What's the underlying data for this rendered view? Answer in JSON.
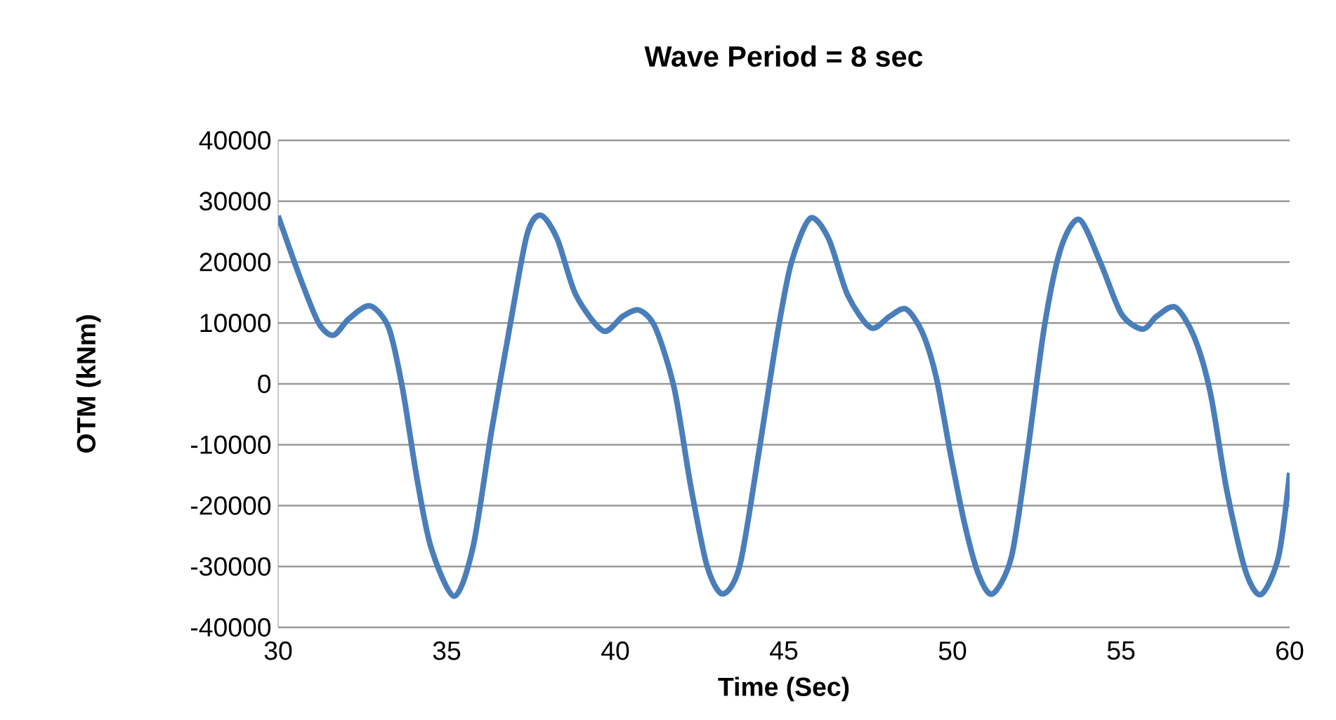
{
  "chart_data": {
    "type": "line",
    "title": "Wave Period = 8 sec",
    "xlabel": "Time (Sec)",
    "ylabel": "OTM (kNm)",
    "x": [
      30.0,
      30.64,
      31.2,
      31.64,
      32.1,
      32.72,
      33.28,
      33.69,
      34.11,
      34.53,
      35.22,
      35.78,
      36.33,
      36.89,
      37.38,
      37.79,
      38.28,
      38.83,
      39.64,
      40.22,
      40.71,
      41.19,
      41.75,
      42.24,
      42.72,
      43.18,
      43.69,
      44.25,
      44.8,
      45.22,
      45.78,
      46.33,
      46.89,
      47.58,
      48.14,
      48.62,
      49.11,
      49.53,
      49.94,
      50.36,
      50.78,
      51.19,
      51.75,
      52.22,
      52.72,
      53.21,
      53.76,
      54.39,
      55.01,
      55.64,
      56.06,
      56.61,
      57.17,
      57.65,
      58.14,
      58.69,
      59.15,
      59.67,
      60.0
    ],
    "series": [
      {
        "color": "#4a7ebb",
        "values": [
          27600,
          17600,
          10000,
          8000,
          10700,
          12800,
          9200,
          -800,
          -15300,
          -26800,
          -34900,
          -26800,
          -7700,
          10000,
          24500,
          27700,
          23800,
          14600,
          8700,
          11100,
          12100,
          9200,
          -800,
          -16900,
          -29900,
          -34500,
          -29900,
          -11500,
          8000,
          19900,
          27200,
          23800,
          14600,
          9200,
          11100,
          12300,
          8400,
          800,
          -11500,
          -23000,
          -31400,
          -34500,
          -28400,
          -11500,
          9200,
          22200,
          27000,
          19900,
          11500,
          9000,
          11100,
          12600,
          7700,
          -1500,
          -17600,
          -30700,
          -34600,
          -28400,
          -14600
        ]
      }
    ],
    "xlim": [
      30,
      60
    ],
    "ylim": [
      -40000,
      40000
    ],
    "xticks": [
      30,
      35,
      40,
      45,
      50,
      55,
      60
    ],
    "yticks": [
      -40000,
      -30000,
      -20000,
      -10000,
      0,
      10000,
      20000,
      30000,
      40000
    ],
    "grid": "y"
  }
}
